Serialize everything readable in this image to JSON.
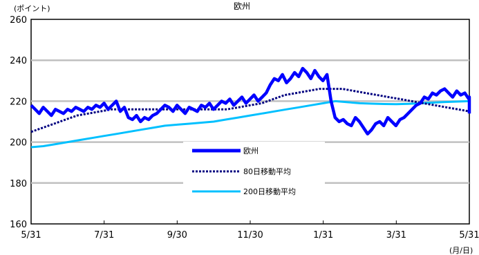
{
  "chart_data": {
    "type": "line",
    "title": "欧州",
    "ylabel": "(ポイント)",
    "xlabel": "(月/日)",
    "ylim": [
      160,
      260
    ],
    "yticks": [
      160,
      180,
      200,
      220,
      240,
      260
    ],
    "xtick_labels": [
      "5/31",
      "7/31",
      "9/30",
      "11/30",
      "1/31",
      "3/31",
      "5/31"
    ],
    "grid": "horizontal",
    "legend_position": "center",
    "series": [
      {
        "name": "欧州",
        "color": "#0000ff",
        "style": "solid-thick",
        "values": [
          218,
          216,
          214,
          217,
          215,
          213,
          216,
          215,
          214,
          216,
          215,
          217,
          216,
          215,
          217,
          216,
          218,
          217,
          219,
          216,
          218,
          220,
          215,
          217,
          212,
          211,
          213,
          210,
          212,
          211,
          213,
          214,
          216,
          218,
          217,
          215,
          218,
          216,
          214,
          217,
          216,
          215,
          218,
          217,
          219,
          216,
          218,
          220,
          219,
          221,
          218,
          220,
          222,
          219,
          221,
          223,
          220,
          222,
          224,
          228,
          231,
          230,
          233,
          229,
          231,
          234,
          232,
          236,
          234,
          231,
          235,
          232,
          230,
          233,
          220,
          212,
          210,
          211,
          209,
          208,
          212,
          210,
          207,
          204,
          206,
          209,
          210,
          208,
          212,
          210,
          208,
          211,
          212,
          214,
          216,
          218,
          219,
          222,
          221,
          224,
          223,
          225,
          226,
          224,
          222,
          225,
          223,
          224,
          221,
          222,
          219,
          214
        ],
        "x_start": 0,
        "x_step": 0.111
      },
      {
        "name": "80日移動平均",
        "color": "#000080",
        "style": "dashed",
        "values": [
          205,
          207,
          209,
          211,
          213,
          214,
          215,
          216,
          216,
          216,
          216,
          216,
          216,
          216,
          216,
          216,
          216,
          216,
          217,
          218,
          219,
          221,
          223,
          224,
          225,
          226,
          226,
          226,
          225,
          224,
          223,
          222,
          221,
          220,
          219,
          218,
          217,
          216,
          215
        ],
        "x_start": 0,
        "x_step": 0.3158
      },
      {
        "name": "200日移動平均",
        "color": "#00c0ff",
        "style": "solid",
        "values": [
          197.5,
          198,
          199,
          200,
          201,
          202,
          203,
          204,
          205,
          206,
          207,
          208,
          208.5,
          209,
          209.5,
          210,
          211,
          212,
          213,
          214,
          215,
          216,
          217,
          218,
          219,
          220,
          219.5,
          219,
          218.8,
          218.6,
          218.5,
          218.7,
          219,
          219.3,
          219.6,
          219.8,
          220
        ],
        "x_start": 0,
        "x_step": 0.3333
      }
    ]
  }
}
